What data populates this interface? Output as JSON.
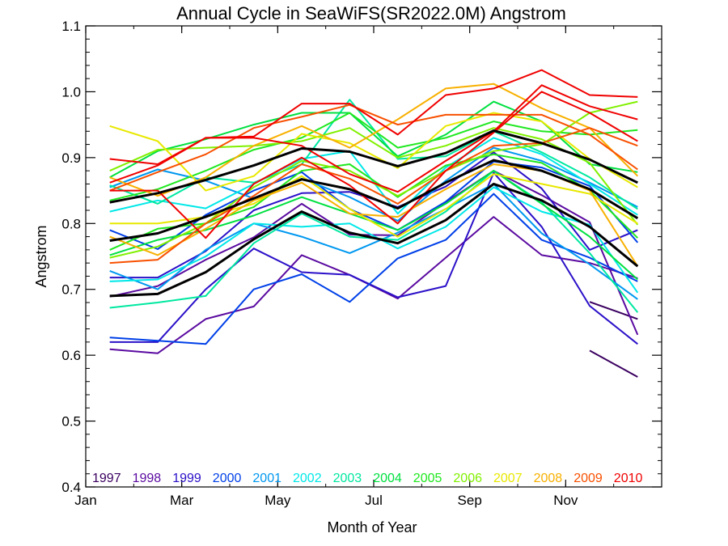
{
  "chart_data": {
    "type": "line",
    "title": "Annual Cycle in SeaWiFS(SR2022.0M) Angstrom",
    "xlabel": "Month of Year",
    "ylabel": "Angstrom",
    "xlim": [
      1,
      13
    ],
    "ylim": [
      0.4,
      1.1
    ],
    "x_ticks": [
      {
        "value": 1,
        "label": "Jan"
      },
      {
        "value": 3,
        "label": "Mar"
      },
      {
        "value": 5,
        "label": "May"
      },
      {
        "value": 7,
        "label": "Jul"
      },
      {
        "value": 9,
        "label": "Sep"
      },
      {
        "value": 11,
        "label": "Nov"
      }
    ],
    "y_ticks": [
      {
        "value": 0.4,
        "label": "0.4"
      },
      {
        "value": 0.5,
        "label": "0.5"
      },
      {
        "value": 0.6,
        "label": "0.6"
      },
      {
        "value": 0.7,
        "label": "0.7"
      },
      {
        "value": 0.8,
        "label": "0.8"
      },
      {
        "value": 0.9,
        "label": "0.9"
      },
      {
        "value": 1.0,
        "label": "1.0"
      },
      {
        "value": 1.1,
        "label": "1.1"
      }
    ],
    "grid": false,
    "legend_placement": "bottom",
    "x": [
      1.5,
      2.5,
      3.5,
      4.5,
      5.5,
      6.5,
      7.5,
      8.5,
      9.5,
      10.5,
      11.5,
      12.5
    ],
    "series": [
      {
        "name": "1997",
        "color": "#3a0060",
        "values": [
          null,
          null,
          null,
          null,
          null,
          null,
          null,
          null,
          null,
          null,
          0.607,
          0.567
        ]
      },
      {
        "name": "1997",
        "color": "#3a0060",
        "values": [
          null,
          null,
          null,
          null,
          null,
          null,
          null,
          null,
          null,
          null,
          0.681,
          0.655
        ]
      },
      {
        "name": "1998",
        "color": "#5a0aa0",
        "values": [
          0.609,
          0.603,
          0.655,
          0.674,
          0.752,
          0.722,
          0.686,
          0.748,
          0.81,
          0.752,
          0.74,
          0.717
        ]
      },
      {
        "name": "1998",
        "color": "#5a0aa0",
        "values": [
          0.689,
          0.705,
          0.745,
          0.779,
          0.83,
          0.783,
          0.782,
          0.832,
          0.88,
          0.843,
          0.802,
          0.631
        ]
      },
      {
        "name": "1999",
        "color": "#2a10c8",
        "values": [
          0.62,
          0.62,
          0.7,
          0.762,
          0.726,
          0.722,
          0.688,
          0.705,
          0.877,
          0.795,
          0.675,
          0.617
        ]
      },
      {
        "name": "1999",
        "color": "#2a10c8",
        "values": [
          0.718,
          0.718,
          0.758,
          0.82,
          0.846,
          0.848,
          0.825,
          0.856,
          0.908,
          0.853,
          0.76,
          0.79
        ]
      },
      {
        "name": "2000",
        "color": "#0040e8",
        "values": [
          0.627,
          0.622,
          0.617,
          0.7,
          0.723,
          0.681,
          0.747,
          0.775,
          0.845,
          0.775,
          0.748,
          0.712
        ]
      },
      {
        "name": "2000",
        "color": "#0040e8",
        "values": [
          0.79,
          0.761,
          0.813,
          0.85,
          0.878,
          0.822,
          0.79,
          0.833,
          0.894,
          0.885,
          0.857,
          0.771
        ]
      },
      {
        "name": "2001",
        "color": "#0098f0",
        "values": [
          0.728,
          0.7,
          0.76,
          0.8,
          0.78,
          0.755,
          0.786,
          0.822,
          0.86,
          0.785,
          0.738,
          0.685
        ]
      },
      {
        "name": "2001",
        "color": "#0098f0",
        "values": [
          0.855,
          0.882,
          0.865,
          0.838,
          0.868,
          0.84,
          0.804,
          0.865,
          0.915,
          0.895,
          0.862,
          0.825
        ]
      },
      {
        "name": "2002",
        "color": "#00e8e8",
        "values": [
          0.712,
          0.715,
          0.75,
          0.8,
          0.795,
          0.8,
          0.762,
          0.795,
          0.855,
          0.818,
          0.798,
          0.695
        ]
      },
      {
        "name": "2002",
        "color": "#00e8e8",
        "values": [
          0.818,
          0.835,
          0.823,
          0.86,
          0.898,
          0.91,
          0.815,
          0.885,
          0.93,
          0.905,
          0.86,
          0.813
        ]
      },
      {
        "name": "2003",
        "color": "#00e8a0",
        "values": [
          0.672,
          0.68,
          0.69,
          0.77,
          0.815,
          0.78,
          0.775,
          0.818,
          0.88,
          0.832,
          0.755,
          0.665
        ]
      },
      {
        "name": "2003",
        "color": "#00e8a0",
        "values": [
          0.858,
          0.83,
          0.87,
          0.862,
          0.89,
          0.988,
          0.898,
          0.902,
          0.94,
          0.908,
          0.87,
          0.822
        ]
      },
      {
        "name": "2004",
        "color": "#00e040",
        "values": [
          0.752,
          0.775,
          0.79,
          0.812,
          0.84,
          0.815,
          0.79,
          0.83,
          0.88,
          0.83,
          0.78,
          0.715
        ]
      },
      {
        "name": "2004",
        "color": "#00e040",
        "values": [
          0.87,
          0.91,
          0.928,
          0.95,
          0.968,
          0.968,
          0.902,
          0.935,
          0.985,
          0.955,
          0.89,
          0.878
        ]
      },
      {
        "name": "2005",
        "color": "#20e820",
        "values": [
          0.76,
          0.792,
          0.8,
          0.825,
          0.88,
          0.89,
          0.84,
          0.888,
          0.905,
          0.892,
          0.85,
          0.778
        ]
      },
      {
        "name": "2005",
        "color": "#20e820",
        "values": [
          0.835,
          0.852,
          0.88,
          0.912,
          0.93,
          0.968,
          0.915,
          0.93,
          0.955,
          0.94,
          0.935,
          0.942
        ]
      },
      {
        "name": "2006",
        "color": "#80f000",
        "values": [
          0.748,
          0.765,
          0.8,
          0.855,
          0.895,
          0.88,
          0.842,
          0.88,
          0.91,
          0.92,
          0.968,
          0.985
        ]
      },
      {
        "name": "2006",
        "color": "#80f000",
        "values": [
          0.88,
          0.912,
          0.915,
          0.918,
          0.925,
          0.945,
          0.9,
          0.918,
          0.945,
          0.928,
          0.892,
          0.798
        ]
      },
      {
        "name": "2007",
        "color": "#e8e800",
        "values": [
          0.948,
          0.925,
          0.85,
          0.872,
          0.936,
          0.922,
          0.884,
          0.948,
          0.968,
          0.955,
          0.898,
          0.855
        ]
      },
      {
        "name": "2007",
        "color": "#e8e800",
        "values": [
          0.8,
          0.8,
          0.81,
          0.83,
          0.872,
          0.822,
          0.78,
          0.822,
          0.875,
          0.86,
          0.845,
          0.8
        ]
      },
      {
        "name": "2008",
        "color": "#f8b000",
        "values": [
          0.87,
          0.842,
          0.87,
          0.918,
          0.948,
          0.915,
          0.958,
          1.005,
          1.012,
          0.975,
          0.945,
          0.872
        ]
      },
      {
        "name": "2008",
        "color": "#f8b000",
        "values": [
          0.78,
          0.752,
          0.792,
          0.835,
          0.862,
          0.815,
          0.81,
          0.852,
          0.89,
          0.88,
          0.85,
          0.735
        ]
      },
      {
        "name": "2009",
        "color": "#f85000",
        "values": [
          0.74,
          0.745,
          0.8,
          0.842,
          0.89,
          0.868,
          0.83,
          0.88,
          0.918,
          0.922,
          0.945,
          0.918
        ]
      },
      {
        "name": "2009",
        "color": "#f85000",
        "values": [
          0.85,
          0.878,
          0.905,
          0.945,
          0.962,
          0.98,
          0.95,
          0.965,
          0.965,
          0.965,
          0.935,
          0.882
        ]
      },
      {
        "name": "2010",
        "color": "#f00000",
        "values": [
          0.898,
          0.89,
          0.93,
          0.932,
          0.982,
          0.982,
          0.935,
          0.995,
          1.005,
          1.033,
          0.995,
          0.992
        ]
      },
      {
        "name": "2010",
        "color": "#f00000",
        "values": [
          0.85,
          0.85,
          0.778,
          0.86,
          0.9,
          0.858,
          0.8,
          0.88,
          0.938,
          1.0,
          0.968,
          0.925
        ]
      },
      {
        "name": "2010",
        "color": "#f00000",
        "values": [
          0.862,
          0.888,
          0.93,
          0.93,
          0.918,
          0.875,
          0.848,
          0.895,
          0.94,
          1.01,
          0.978,
          0.958
        ]
      },
      {
        "name": "",
        "color": "#000000",
        "width": 3,
        "values": [
          0.832,
          0.846,
          0.866,
          0.888,
          0.914,
          0.909,
          0.887,
          0.907,
          0.941,
          0.922,
          0.897,
          0.862
        ]
      },
      {
        "name": "",
        "color": "#000000",
        "width": 3,
        "values": [
          0.774,
          0.785,
          0.81,
          0.838,
          0.867,
          0.852,
          0.823,
          0.862,
          0.896,
          0.88,
          0.852,
          0.808
        ]
      },
      {
        "name": "",
        "color": "#000000",
        "width": 3,
        "values": [
          0.69,
          0.693,
          0.726,
          0.776,
          0.818,
          0.786,
          0.77,
          0.805,
          0.86,
          0.835,
          0.795,
          0.735
        ]
      }
    ],
    "legend": [
      {
        "label": "1997",
        "color": "#3a0060"
      },
      {
        "label": "1998",
        "color": "#5a0aa0"
      },
      {
        "label": "1999",
        "color": "#2a10c8"
      },
      {
        "label": "2000",
        "color": "#0040e8"
      },
      {
        "label": "2001",
        "color": "#0098f0"
      },
      {
        "label": "2002",
        "color": "#00e8e8"
      },
      {
        "label": "2003",
        "color": "#00e8a0"
      },
      {
        "label": "2004",
        "color": "#00e040"
      },
      {
        "label": "2005",
        "color": "#20e820"
      },
      {
        "label": "2006",
        "color": "#80f000"
      },
      {
        "label": "2007",
        "color": "#e8e800"
      },
      {
        "label": "2008",
        "color": "#f8b000"
      },
      {
        "label": "2009",
        "color": "#f85000"
      },
      {
        "label": "2010",
        "color": "#f00000"
      }
    ]
  }
}
